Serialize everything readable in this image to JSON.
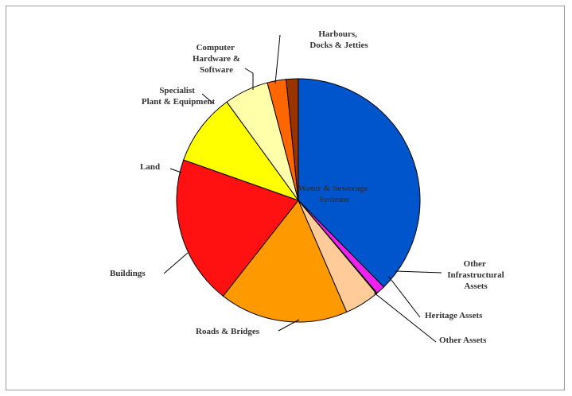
{
  "chart_data": {
    "type": "pie",
    "title": "",
    "slices": [
      {
        "label": "Water & Sewerage Systems",
        "value": 37.6,
        "color": "#0055cc"
      },
      {
        "label": "Other Infrastructural Assets",
        "value": 1.2,
        "color": "#ee22ee"
      },
      {
        "label": "Heritage Assets",
        "value": 0.1,
        "color": "#8899aa"
      },
      {
        "label": "Other Assets",
        "value": 4.6,
        "color": "#ffcc99"
      },
      {
        "label": "Roads & Bridges",
        "value": 17.1,
        "color": "#ff9900"
      },
      {
        "label": "Buildings",
        "value": 19.8,
        "color": "#ff1111"
      },
      {
        "label": "Land",
        "value": 9.6,
        "color": "#ffff00"
      },
      {
        "label": "Specialist Plant & Equipment",
        "value": 5.9,
        "color": "#ffffaa"
      },
      {
        "label": "Computer Hardware & Software",
        "value": 2.5,
        "color": "#ff6600"
      },
      {
        "label": "Harbours, Docks & Jetties",
        "value": 1.6,
        "color": "#993300"
      }
    ]
  }
}
